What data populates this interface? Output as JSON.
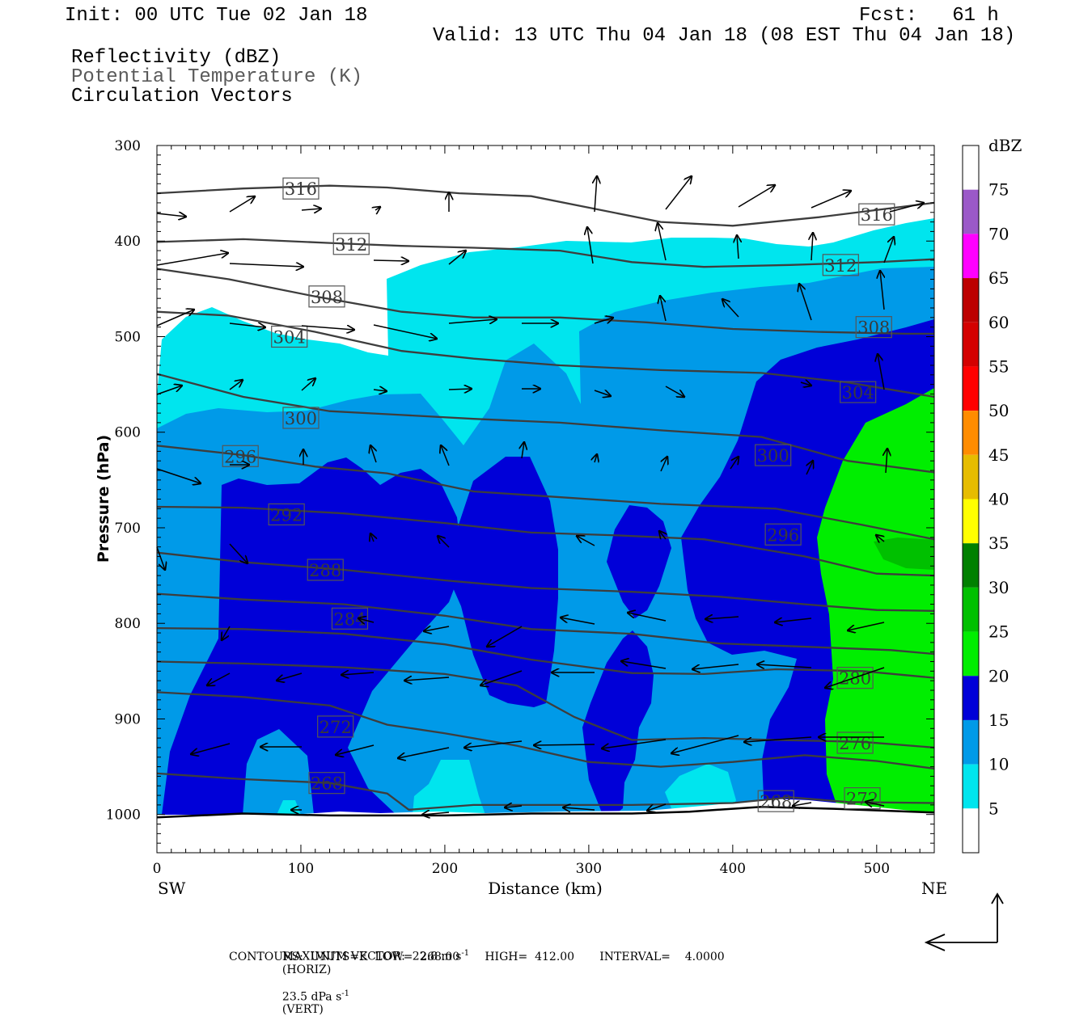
{
  "header": {
    "init": "Init: 00 UTC Tue 02 Jan 18",
    "fcst": "Fcst:   61 h",
    "valid": "Valid: 13 UTC Thu 04 Jan 18 (08 EST Thu 04 Jan 18)",
    "field1": "Reflectivity (dBZ)",
    "field2": "Potential Temperature (K)",
    "field3": "Circulation Vectors"
  },
  "footer": {
    "max_vector": "MAXIMUM VECTOR:  22.8 m s",
    "horiz": "(HORIZ)",
    "vert_val": "23.5 dPa s",
    "vert": "(VERT)",
    "contours": "CONTOURS:  UNITS=K  LOW=  268.00       HIGH=  412.00       INTERVAL=    4.0000",
    "sup": "-1"
  },
  "chart_data": {
    "type": "heatmap",
    "xlabel": "Distance (km)",
    "ylabel": "Pressure (hPa)",
    "xlim": [
      0,
      540
    ],
    "ylim": [
      1040,
      300
    ],
    "x_ticks": [
      0,
      100,
      200,
      300,
      400,
      500
    ],
    "y_ticks": [
      300,
      400,
      500,
      600,
      700,
      800,
      900,
      1000
    ],
    "x_end_left": "SW",
    "x_end_right": "NE",
    "colorbar": {
      "unit": "dBZ",
      "levels": [
        5,
        10,
        15,
        20,
        25,
        30,
        35,
        40,
        45,
        50,
        55,
        60,
        65,
        70,
        75
      ],
      "colors": [
        "#ffffff",
        "#00e5ee",
        "#009ae8",
        "#0000d8",
        "#00ee00",
        "#00c000",
        "#008000",
        "#ffff00",
        "#e6bc00",
        "#ff8c00",
        "#ff0000",
        "#d40000",
        "#bc0000",
        "#ff00ff",
        "#9b59c8",
        "#ffffff"
      ]
    },
    "theta_contour_labels": [
      "316",
      "312",
      "308",
      "304",
      "300",
      "296",
      "292",
      "288",
      "284",
      "280",
      "276",
      "272",
      "268"
    ],
    "theta_contours": [
      {
        "label": "316",
        "points": [
          [
            0,
            350
          ],
          [
            60,
            345
          ],
          [
            120,
            342
          ],
          [
            160,
            344
          ],
          [
            210,
            350
          ],
          [
            260,
            353
          ],
          [
            300,
            365
          ],
          [
            350,
            380
          ],
          [
            400,
            384
          ],
          [
            460,
            375
          ],
          [
            540,
            360
          ]
        ]
      },
      {
        "label": "312",
        "points": [
          [
            0,
            401
          ],
          [
            60,
            398
          ],
          [
            120,
            402
          ],
          [
            170,
            405
          ],
          [
            220,
            407
          ],
          [
            280,
            410
          ],
          [
            330,
            422
          ],
          [
            380,
            427
          ],
          [
            440,
            425
          ],
          [
            500,
            422
          ],
          [
            540,
            419
          ]
        ]
      },
      {
        "label": "308",
        "points": [
          [
            0,
            429
          ],
          [
            50,
            440
          ],
          [
            110,
            458
          ],
          [
            170,
            474
          ],
          [
            220,
            480
          ],
          [
            280,
            480
          ],
          [
            340,
            485
          ],
          [
            400,
            492
          ],
          [
            460,
            495
          ],
          [
            520,
            497
          ],
          [
            540,
            497
          ]
        ]
      },
      {
        "label": "304",
        "points": [
          [
            0,
            474
          ],
          [
            50,
            478
          ],
          [
            110,
            495
          ],
          [
            170,
            515
          ],
          [
            220,
            523
          ],
          [
            280,
            530
          ],
          [
            350,
            535
          ],
          [
            420,
            538
          ],
          [
            480,
            548
          ],
          [
            540,
            563
          ]
        ]
      },
      {
        "label": "300",
        "points": [
          [
            0,
            539
          ],
          [
            60,
            563
          ],
          [
            120,
            578
          ],
          [
            170,
            582
          ],
          [
            220,
            586
          ],
          [
            280,
            590
          ],
          [
            350,
            598
          ],
          [
            420,
            605
          ],
          [
            480,
            630
          ],
          [
            540,
            642
          ]
        ]
      },
      {
        "label": "296",
        "points": [
          [
            0,
            614
          ],
          [
            60,
            624
          ],
          [
            110,
            636
          ],
          [
            160,
            643
          ],
          [
            220,
            662
          ],
          [
            290,
            669
          ],
          [
            350,
            675
          ],
          [
            430,
            680
          ],
          [
            490,
            697
          ],
          [
            540,
            712
          ]
        ]
      },
      {
        "label": "292",
        "points": [
          [
            0,
            678
          ],
          [
            60,
            679
          ],
          [
            130,
            685
          ],
          [
            200,
            695
          ],
          [
            260,
            705
          ],
          [
            320,
            708
          ],
          [
            380,
            712
          ],
          [
            450,
            730
          ],
          [
            500,
            748
          ],
          [
            540,
            750
          ]
        ]
      },
      {
        "label": "288",
        "points": [
          [
            0,
            726
          ],
          [
            60,
            736
          ],
          [
            130,
            744
          ],
          [
            200,
            755
          ],
          [
            260,
            763
          ],
          [
            330,
            767
          ],
          [
            390,
            772
          ],
          [
            450,
            780
          ],
          [
            500,
            786
          ],
          [
            540,
            787
          ]
        ]
      },
      {
        "label": "284",
        "points": [
          [
            0,
            769
          ],
          [
            60,
            775
          ],
          [
            130,
            780
          ],
          [
            200,
            792
          ],
          [
            260,
            806
          ],
          [
            330,
            811
          ],
          [
            390,
            821
          ],
          [
            460,
            825
          ],
          [
            510,
            828
          ],
          [
            540,
            832
          ]
        ]
      },
      {
        "label": "280",
        "points": [
          [
            0,
            805
          ],
          [
            60,
            806
          ],
          [
            130,
            811
          ],
          [
            200,
            822
          ],
          [
            260,
            838
          ],
          [
            330,
            852
          ],
          [
            380,
            853
          ],
          [
            430,
            848
          ],
          [
            490,
            850
          ],
          [
            540,
            857
          ]
        ]
      },
      {
        "label": "276",
        "points": [
          [
            0,
            840
          ],
          [
            60,
            842
          ],
          [
            130,
            846
          ],
          [
            200,
            853
          ],
          [
            250,
            865
          ],
          [
            290,
            898
          ],
          [
            330,
            922
          ],
          [
            380,
            920
          ],
          [
            430,
            922
          ],
          [
            490,
            924
          ],
          [
            540,
            930
          ]
        ]
      },
      {
        "label": "272",
        "points": [
          [
            0,
            872
          ],
          [
            60,
            877
          ],
          [
            120,
            886
          ],
          [
            160,
            906
          ],
          [
            200,
            915
          ],
          [
            250,
            928
          ],
          [
            300,
            945
          ],
          [
            350,
            950
          ],
          [
            400,
            945
          ],
          [
            450,
            938
          ],
          [
            500,
            944
          ],
          [
            540,
            952
          ]
        ]
      },
      {
        "label": "268",
        "points": [
          [
            0,
            957
          ],
          [
            60,
            963
          ],
          [
            120,
            967
          ],
          [
            160,
            978
          ],
          [
            175,
            995
          ],
          [
            220,
            990
          ],
          [
            280,
            990
          ],
          [
            330,
            990
          ],
          [
            400,
            988
          ],
          [
            440,
            982
          ],
          [
            480,
            987
          ],
          [
            540,
            988
          ]
        ]
      }
    ],
    "surface_pressure": [
      [
        0,
        1003
      ],
      [
        60,
        999
      ],
      [
        120,
        1001
      ],
      [
        200,
        1001
      ],
      [
        260,
        999
      ],
      [
        330,
        999
      ],
      [
        370,
        997
      ],
      [
        420,
        992
      ],
      [
        470,
        994
      ],
      [
        540,
        998
      ]
    ],
    "max_vector": {
      "horiz_ms": 22.8,
      "vert_dpa": 23.5
    }
  }
}
